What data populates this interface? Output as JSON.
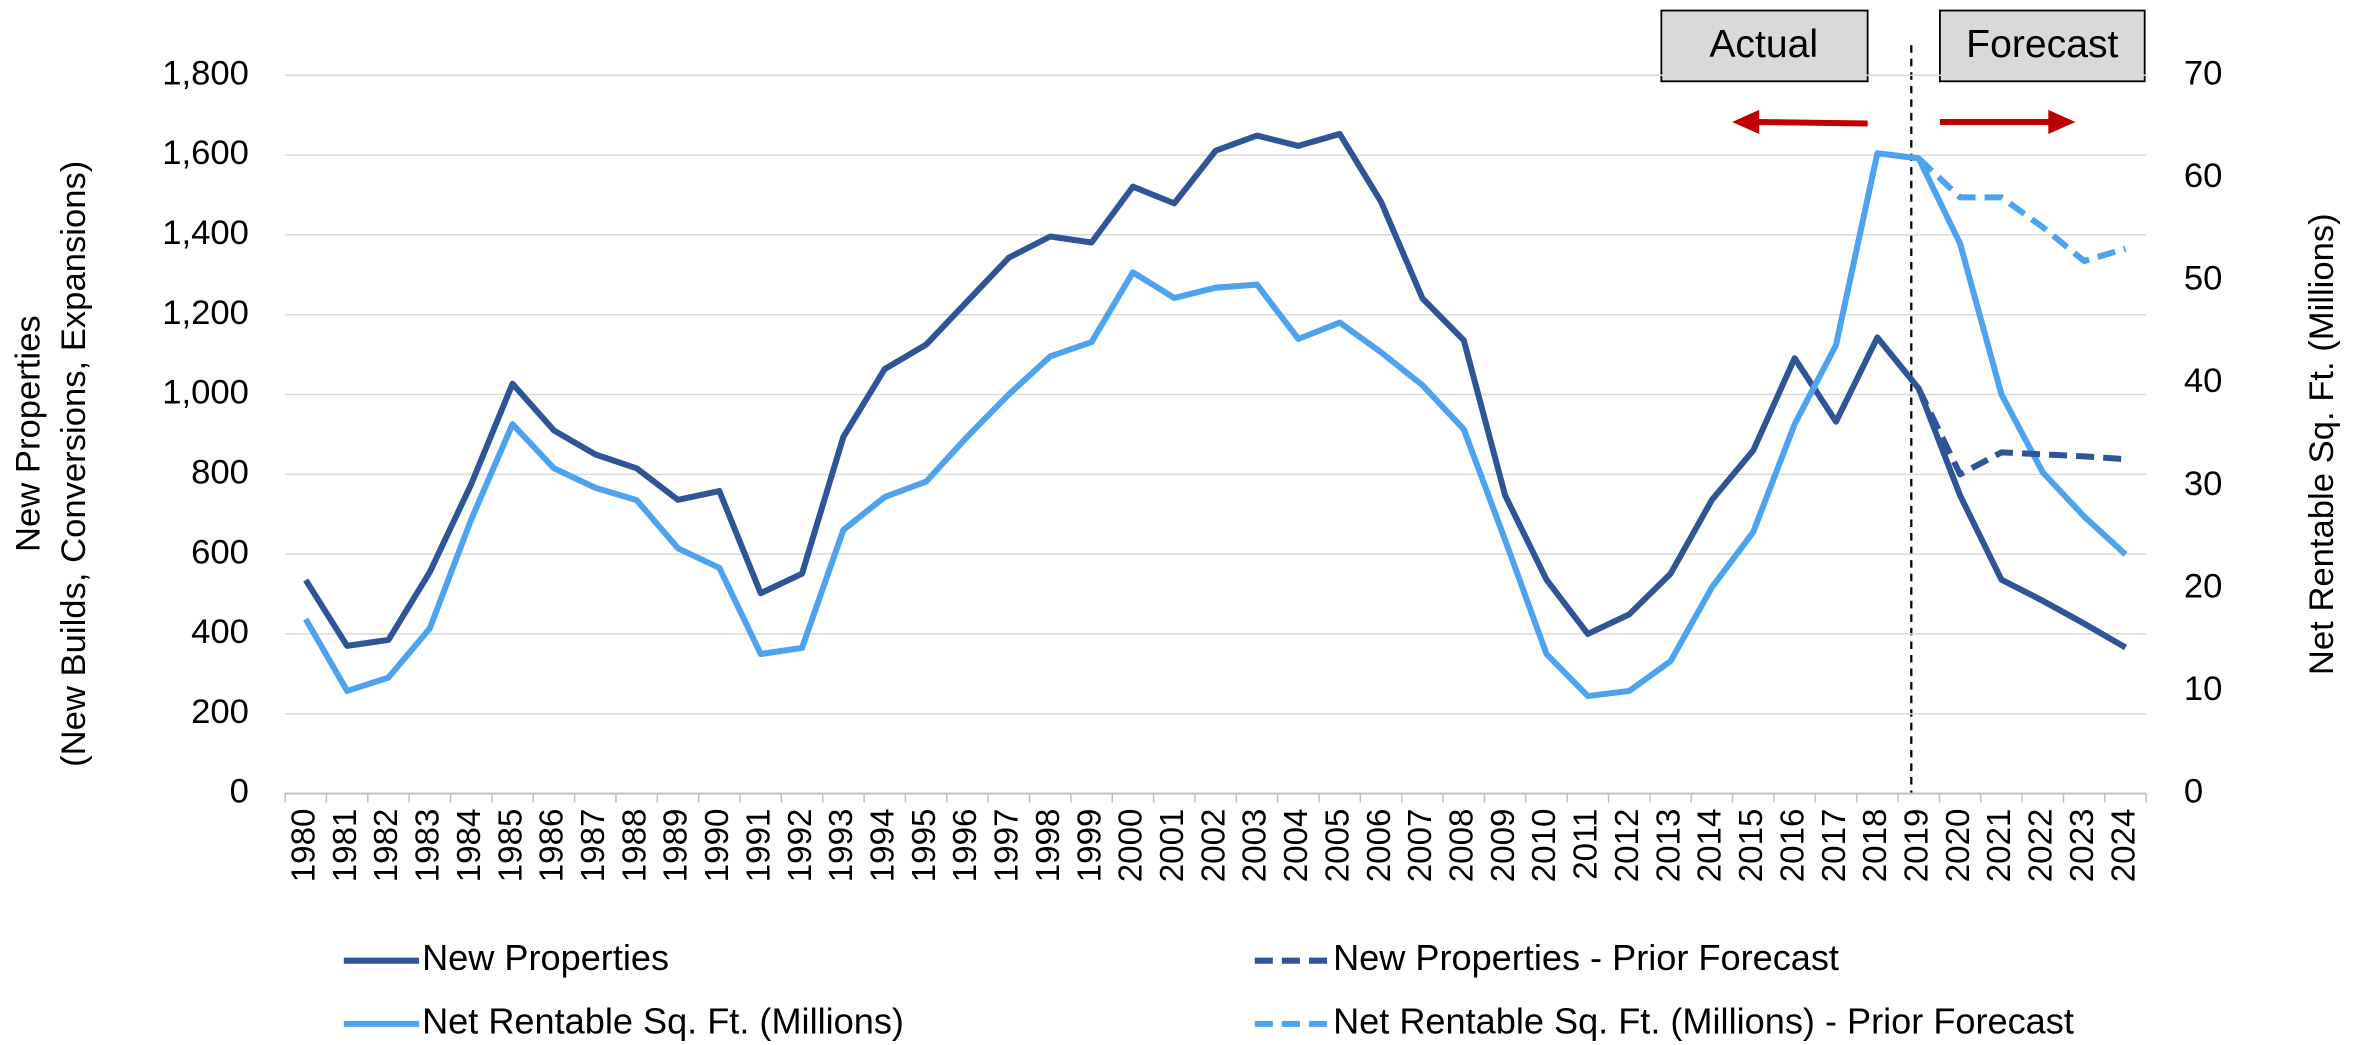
{
  "chart_data": {
    "type": "line",
    "y_label_lines": [
      "New Properties",
      "(New Builds, Conversions, Expansions)"
    ],
    "y2_label": "Net Rentable Sq. Ft. (Millions)",
    "annotations": [
      "Actual",
      "Forecast"
    ],
    "categories": [
      "1980",
      "1981",
      "1982",
      "1983",
      "1984",
      "1985",
      "1986",
      "1987",
      "1988",
      "1989",
      "1990",
      "1991",
      "1992",
      "1993",
      "1994",
      "1995",
      "1996",
      "1997",
      "1998",
      "1999",
      "2000",
      "2001",
      "2002",
      "2003",
      "2004",
      "2005",
      "2006",
      "2007",
      "2008",
      "2009",
      "2010",
      "2011",
      "2012",
      "2013",
      "2014",
      "2015",
      "2016",
      "2017",
      "2018",
      "2019",
      "2020",
      "2021",
      "2022",
      "2023",
      "2024"
    ],
    "series": [
      {
        "name": "New Properties",
        "color": "#2f5597",
        "dashed": false,
        "values": [
          535,
          370,
          385,
          555,
          775,
          1027,
          910,
          850,
          815,
          736,
          758,
          502,
          551,
          894,
          1064,
          1125,
          1234,
          1343,
          1396,
          1381,
          1521,
          1479,
          1611,
          1649,
          1623,
          1653,
          1483,
          1241,
          1136,
          747,
          536,
          400,
          449,
          551,
          736,
          860,
          1091,
          932,
          1143,
          1015,
          747,
          536,
          483,
          426,
          366
        ]
      },
      {
        "name": "Net Rentable Sq. Ft. (Millions)",
        "color": "#4da3ee",
        "dashed": false,
        "axis": "y2",
        "values": [
          17.0,
          10.0,
          11.3,
          16.1,
          26.7,
          36.0,
          31.7,
          29.8,
          28.6,
          23.9,
          22.0,
          13.6,
          14.2,
          25.7,
          28.9,
          30.4,
          34.8,
          38.9,
          42.6,
          44.0,
          50.8,
          48.3,
          49.3,
          49.6,
          44.3,
          45.9,
          43.0,
          39.8,
          35.5,
          24.7,
          13.6,
          9.5,
          10.0,
          12.9,
          20.1,
          25.5,
          36.0,
          43.7,
          62.4,
          61.9,
          53.6,
          38.9,
          31.3,
          27.0,
          23.3
        ]
      },
      {
        "name": "New Properties - Prior Forecast",
        "color": "#2f5597",
        "dashed": true,
        "values": [
          null,
          null,
          null,
          null,
          null,
          null,
          null,
          null,
          null,
          null,
          null,
          null,
          null,
          null,
          null,
          null,
          null,
          null,
          null,
          null,
          null,
          null,
          null,
          null,
          null,
          null,
          null,
          null,
          null,
          null,
          null,
          null,
          null,
          null,
          null,
          null,
          null,
          null,
          null,
          1015,
          800,
          855,
          850,
          845,
          838
        ]
      },
      {
        "name": "Net Rentable Sq. Ft. (Millions) - Prior Forecast",
        "color": "#4da3ee",
        "dashed": true,
        "axis": "y2",
        "values": [
          null,
          null,
          null,
          null,
          null,
          null,
          null,
          null,
          null,
          null,
          null,
          null,
          null,
          null,
          null,
          null,
          null,
          null,
          null,
          null,
          null,
          null,
          null,
          null,
          null,
          null,
          null,
          null,
          null,
          null,
          null,
          null,
          null,
          null,
          null,
          null,
          null,
          null,
          null,
          61.9,
          58.1,
          58.1,
          55.2,
          51.9,
          53.1
        ]
      }
    ],
    "ylim": [
      0,
      1800
    ],
    "yticks": [
      0,
      200,
      400,
      600,
      800,
      {
        "value": 1000,
        "label": "1,000"
      },
      {
        "value": 1200,
        "label": "1,200"
      },
      {
        "value": 1400,
        "label": "1,400"
      },
      {
        "value": 1600,
        "label": "1,600"
      },
      {
        "value": 1800,
        "label": "1,800"
      }
    ],
    "y2lim": [
      0,
      70
    ],
    "y2ticks": [
      0,
      10,
      20,
      30,
      40,
      50,
      60,
      70
    ],
    "grid": true
  }
}
